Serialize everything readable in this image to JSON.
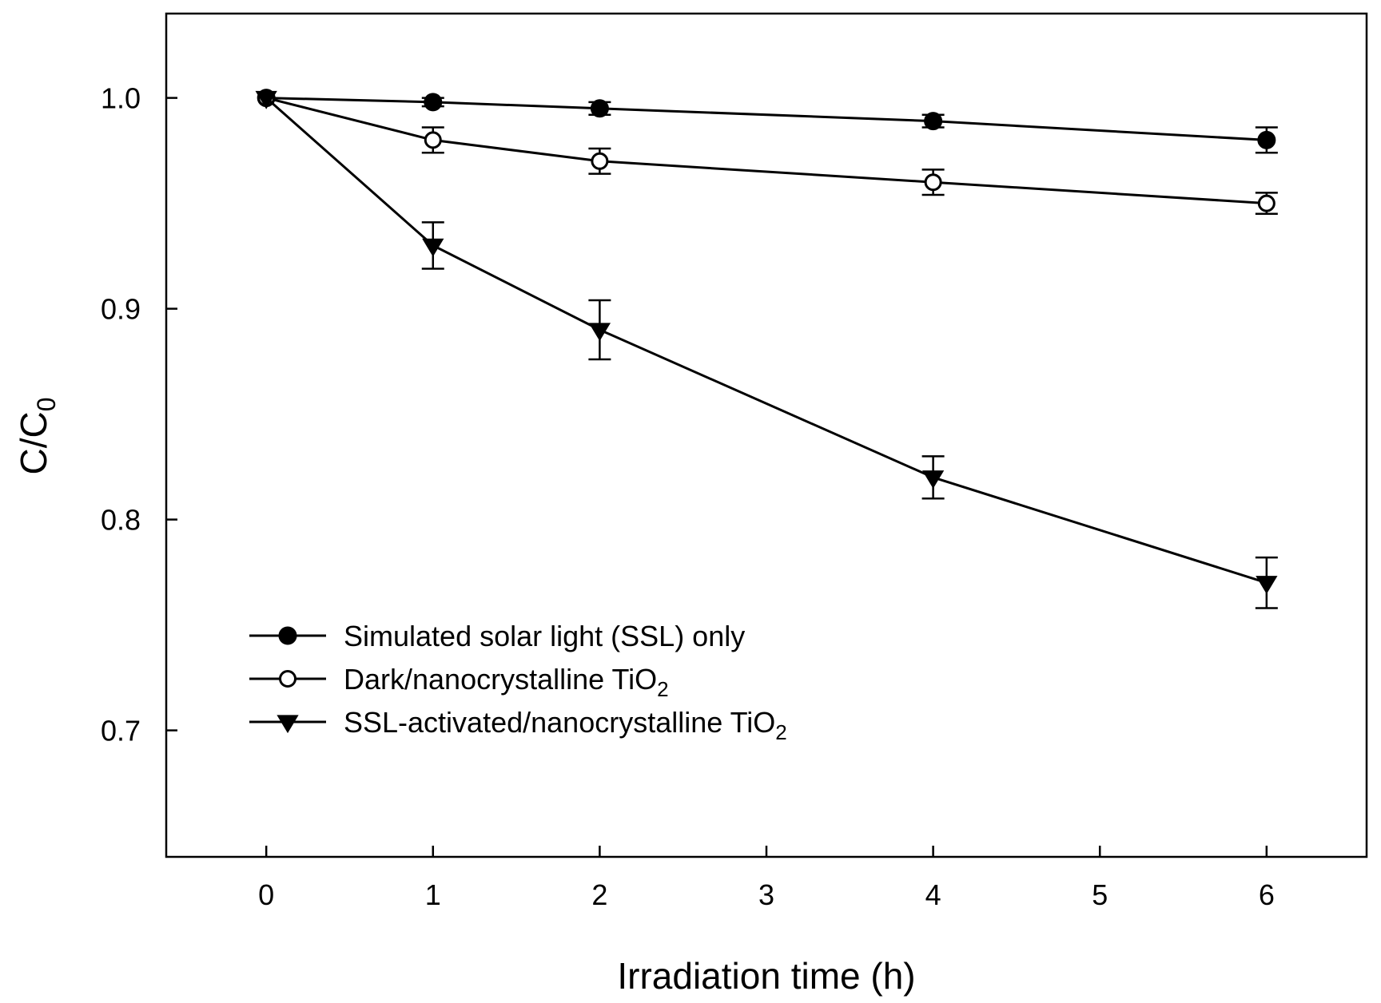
{
  "chart_data": {
    "type": "line",
    "title": "",
    "xlabel": "Irradiation time (h)",
    "ylabel": {
      "main": "C/C",
      "sub": "0"
    },
    "xlim": [
      -0.6,
      6.6
    ],
    "ylim": [
      0.64,
      1.04
    ],
    "xticks": [
      "0",
      "1",
      "2",
      "3",
      "4",
      "5",
      "6"
    ],
    "yticks": [
      "0.7",
      "0.8",
      "0.9",
      "1.0"
    ],
    "grid": false,
    "legend_position": "lower-left",
    "series": [
      {
        "name": "Simulated solar light (SSL) only",
        "name_sub": "",
        "marker": "filled-circle",
        "x": [
          0,
          1,
          2,
          4,
          6
        ],
        "y": [
          1.0,
          0.998,
          0.995,
          0.989,
          0.98
        ],
        "err": [
          0,
          0.002,
          0.003,
          0.003,
          0.006
        ]
      },
      {
        "name": "Dark/nanocrystalline TiO",
        "name_sub": "2",
        "marker": "open-circle",
        "x": [
          0,
          1,
          2,
          4,
          6
        ],
        "y": [
          1.0,
          0.98,
          0.97,
          0.96,
          0.95
        ],
        "err": [
          0,
          0.006,
          0.006,
          0.006,
          0.005
        ]
      },
      {
        "name": "SSL-activated/nanocrystalline TiO",
        "name_sub": "2",
        "marker": "filled-triangle-down",
        "x": [
          0,
          1,
          2,
          4,
          6
        ],
        "y": [
          1.0,
          0.93,
          0.89,
          0.82,
          0.77
        ],
        "err": [
          0,
          0.011,
          0.014,
          0.01,
          0.012
        ]
      }
    ]
  }
}
